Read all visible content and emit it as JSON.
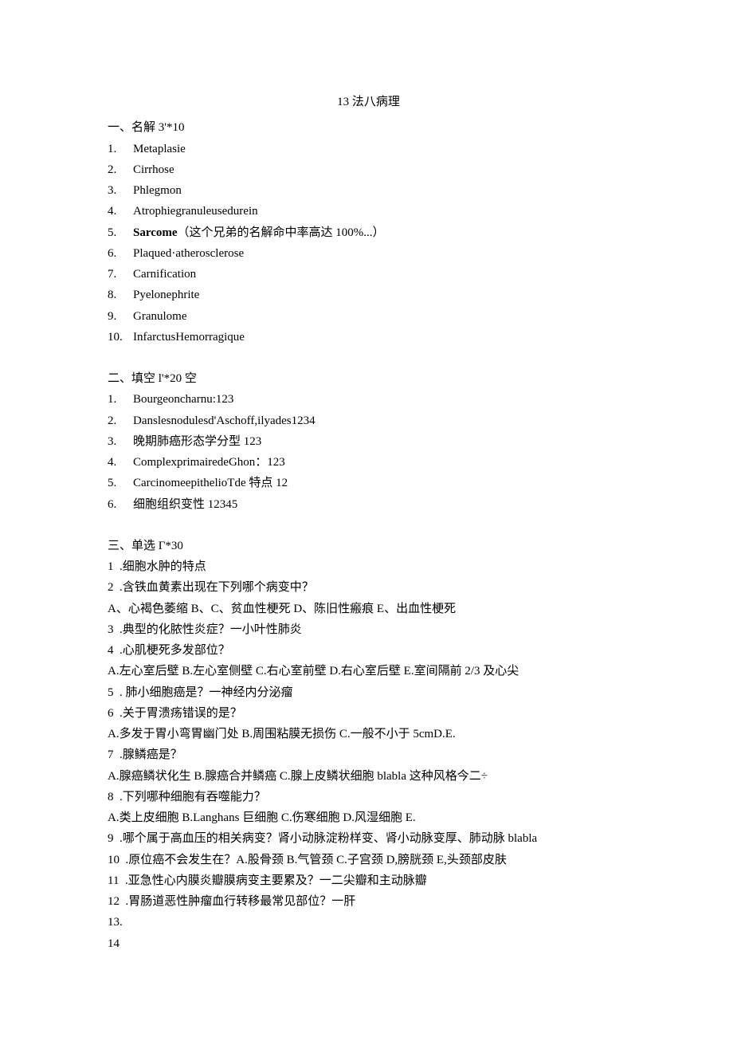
{
  "title": "13 法八病理",
  "s1": {
    "header": "一、名解 3'*10",
    "items": [
      "Metaplasie",
      "Cirrhose",
      "Phlegmon",
      "Atrophiegranuleusedurein",
      "",
      "Plaqued·atherosclerose",
      "Carnification",
      "Pyelonephrite",
      "Granulome",
      " InfarctusHemorragique"
    ],
    "sarcome_bold": "Sarcome",
    "sarcome_rest": "（这个兄弟的名解命中率高达 100%...）"
  },
  "s2": {
    "header": "二、填空 l'*20 空",
    "items": [
      "Bourgeoncharnu:123",
      "Danslesnodulesd'Aschoff,ilyades1234",
      "晚期肺癌形态学分型 123",
      "ComplexprimairedeGhon：123",
      "CarcinomeepithelioTde 特点 12",
      "细胞组织变性 12345"
    ]
  },
  "s3": {
    "header": "三、单选 Г*30",
    "lines": [
      "1  .细胞水肿的特点",
      "2  .含铁血黄素出现在下列哪个病变中？",
      "A、心褐色萎缩 B、C、贫血性梗死 D、陈旧性瘢痕 E、出血性梗死",
      "3  .典型的化脓性炎症？一小叶性肺炎",
      "4  .心肌梗死多发部位？",
      "A.左心室后壁 B.左心室侧壁 C.右心室前壁 D.右心室后壁 E.室间隔前 2/3 及心尖",
      "5  . 肺小细胞癌是？一神经内分泌瘤",
      "6  .关于胃溃疡错误的是？",
      "A.多发于胃小弯胃幽门处 B.周围粘膜无损伤 C.一般不小于 5cmD.E.",
      "7  .腺鳞癌是？",
      "A.腺癌鳞状化生 B.腺癌合并鳞癌 C.腺上皮鳞状细胞 blabla 这种风格今二÷",
      "8  .下列哪种细胞有吞噬能力？",
      "A.类上皮细胞 B.Langhans 巨细胞 C.伤寒细胞 D.风湿细胞 E.",
      "9  .哪个属于高血压的相关病变？肾小动脉淀粉样变、肾小动脉变厚、肺动脉 blabla",
      "10  .原位癌不会发生在？A.股骨颈 B.气管颈 C.子宫颈 D,膀胱颈 E,头颈部皮肤",
      "11  .亚急性心内膜炎瓣膜病变主要累及？一二尖瓣和主动脉瓣",
      "12  .胃肠道恶性肿瘤血行转移最常见部位？一肝",
      "13.",
      "14"
    ]
  }
}
